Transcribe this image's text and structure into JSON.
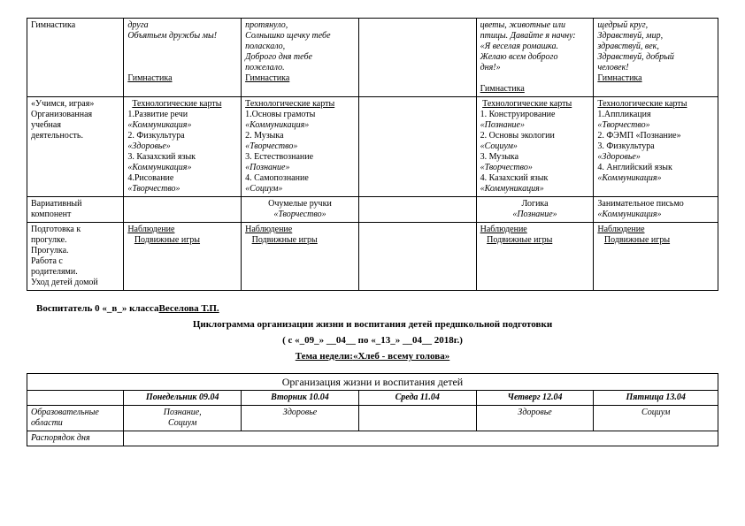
{
  "table1": {
    "row1": {
      "c1": "Гимнастика",
      "c2a": "друга",
      "c2b": "Объятьем дружбы мы!",
      "c2c": "Гимнастика",
      "c3a": "протянуло,",
      "c3b": "Солнышко щечку тебе",
      "c3c": "поласкало,",
      "c3d": "Доброго дня тебе",
      "c3e": "пожелало.",
      "c3f": "Гимнастика",
      "c4": "",
      "c5a": "цветы, животные или",
      "c5b": "птицы. Давайте я начну:",
      "c5c": "«Я веселая ромашка.",
      "c5d": "Желаю всем доброго",
      "c5e": "дня!»",
      "c5f": "Гимнастика",
      "c6a": "щедрый круг,",
      "c6b": "Здравствуй, мир,",
      "c6c": "здравствуй, век,",
      "c6d": "Здравствуй, добрый",
      "c6e": "человек!",
      "c6f": "Гимнастика"
    },
    "row2": {
      "c1a": "«Учимся, играя»",
      "c1b": "Организованная",
      "c1c": "учебная",
      "c1d": "деятельность.",
      "c2h": "Технологические карты",
      "c2_1": "1.Развитие речи",
      "c2_1i": "«Коммуникация»",
      "c2_2": "2. Физкультура",
      "c2_2i": "«Здоровье»",
      "c2_3": "3. Казахский язык",
      "c2_3i": "«Коммуникация»",
      "c2_4": "4.Рисование",
      "c2_4i": "«Творчество»",
      "c3h": "Технологические карты",
      "c3_1": "1.Основы грамоты",
      "c3_1i": "«Коммуникация»",
      "c3_2": "2. Музыка",
      "c3_2i": "«Творчество»",
      "c3_3": "3. Естествознание",
      "c3_3i": "«Познание»",
      "c3_4": "4. Самопознание",
      "c3_4i": "«Социум»",
      "c4": "",
      "c5h": "Технологические карты",
      "c5_1": "1. Конструирование",
      "c5_1i": "«Познание»",
      "c5_2": "2. Основы экологии",
      "c5_2i": "«Социум»",
      "c5_3": "3. Музыка",
      "c5_3i": "«Творчество»",
      "c5_4": "4. Казахский язык",
      "c5_4i": "«Коммуникация»",
      "c6h": "Технологические карты",
      "c6_1": "1.Аппликация",
      "c6_1i": "«Творчество»",
      "c6_2": "2. ФЭМП «Познание»",
      "c6_3": "3. Физкультура",
      "c6_3i": "«Здоровье»",
      "c6_4": "4. Английский язык",
      "c6_4i": "«Коммуникация»"
    },
    "row3": {
      "c1a": "Вариативный",
      "c1b": "компонент",
      "c3a": "Очумелые ручки",
      "c3b": "«Творчество»",
      "c5a": "Логика",
      "c5b": "«Познание»",
      "c6a": "Занимательное письмо",
      "c6b": "«Коммуникация»"
    },
    "row4": {
      "c1a": "Подготовка к",
      "c1b": "прогулке.",
      "c1c": "Прогулка.",
      "c1d": "Работа с",
      "c1e": "родителями.",
      "c1f": "Уход детей домой",
      "obs": "Наблюдение",
      "games": "Подвижные игры "
    }
  },
  "teacher": {
    "prefix": "Воспитатель 0 «_",
    "letter": "в",
    "mid": "_» класса",
    "name": "Веселова Т.П."
  },
  "heading": {
    "h1": "Циклограмма организации жизни и воспитания детей предшкольной подготовки",
    "h2": "( с «_09_» __04__ по «_13_» __04__ 2018г.)",
    "h3pre": "Тема недели:",
    "h3": "«Хлеб - всему голова»"
  },
  "table2": {
    "caption": "Организация жизни и воспитания детей",
    "days": {
      "mon": "Понедельник 09.04",
      "tue": "Вторник 10.04",
      "wed": "Среда 11.04",
      "thu": "Четверг 12.04",
      "fri": "Пятница 13.04"
    },
    "row_subj": {
      "c1": "Образовательные области",
      "c2a": "Познание,",
      "c2b": "Социум",
      "c3": "Здоровье",
      "c5": "Здоровье",
      "c6": "Социум"
    },
    "row_last": {
      "c1": "Распорядок дня"
    }
  }
}
